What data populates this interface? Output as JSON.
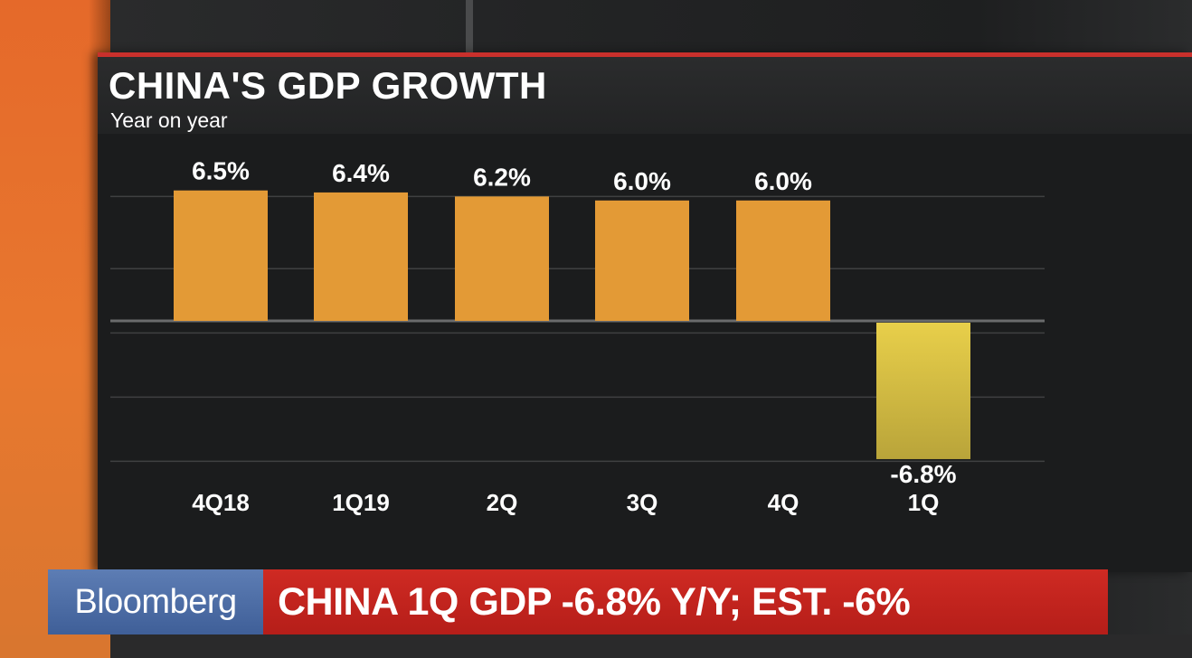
{
  "chart_data": {
    "type": "bar",
    "title": "CHINA'S GDP GROWTH",
    "subtitle": "Year on year",
    "categories": [
      "4Q18",
      "1Q19",
      "2Q",
      "3Q",
      "4Q",
      "1Q"
    ],
    "values": [
      6.5,
      6.4,
      6.2,
      6.0,
      6.0,
      -6.8
    ],
    "value_labels": [
      "6.5%",
      "6.4%",
      "6.2%",
      "6.0%",
      "6.0%",
      "-6.8%"
    ],
    "ylim": [
      -7,
      9
    ],
    "grid": true,
    "colors": {
      "positive": "#e39a36",
      "highlight": "#e8cf4a",
      "grid": "#3f4041",
      "zero_line": "#6a6b6c"
    }
  },
  "lower_third": {
    "brand": "Bloomberg",
    "headline": "CHINA 1Q GDP -6.8% Y/Y; EST. -6%"
  }
}
